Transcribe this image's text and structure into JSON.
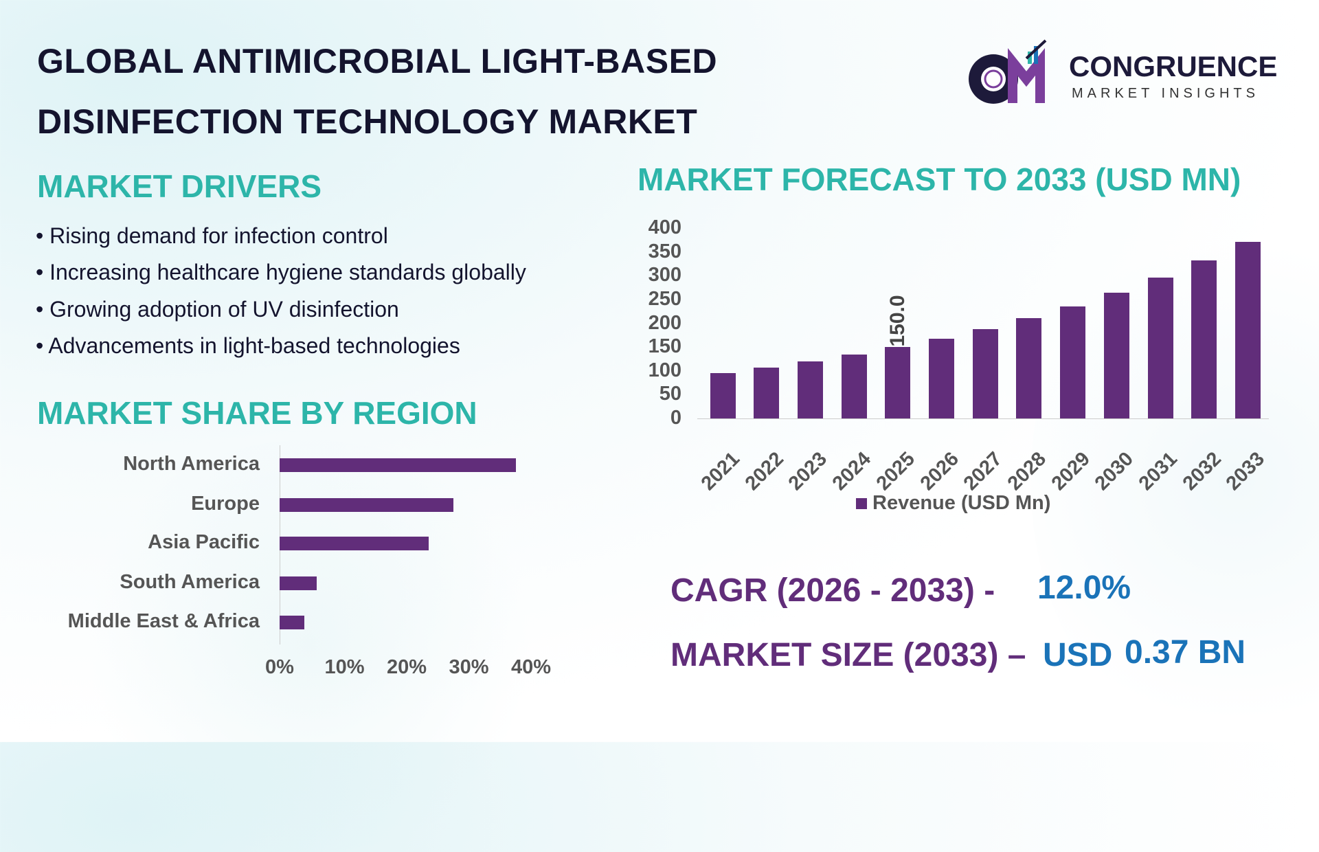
{
  "title_lines": [
    "GLOBAL ANTIMICROBIAL LIGHT-BASED",
    "DISINFECTION TECHNOLOGY MARKET"
  ],
  "logo": {
    "name": "CONGRUENCE",
    "tagline": "MARKET INSIGHTS",
    "letters": "CM"
  },
  "drivers": {
    "heading": "MARKET DRIVERS",
    "items": [
      "• Rising demand for infection control",
      "• Increasing healthcare hygiene standards globally",
      "• Growing adoption of UV disinfection",
      "• Advancements in light-based technologies"
    ]
  },
  "colors": {
    "bar": "#612d7a",
    "heading": "#2db5a9",
    "kpi_label": "#612d7a",
    "kpi_value": "#1a73b8"
  },
  "chart_data": [
    {
      "type": "bar",
      "orientation": "horizontal",
      "title": "MARKET SHARE BY REGION",
      "categories": [
        "North America",
        "Europe",
        "Asia Pacific",
        "South America",
        "Middle East & Africa"
      ],
      "values": [
        38,
        28,
        24,
        6,
        4
      ],
      "xlim": [
        0,
        40
      ],
      "xticks": [
        "0%",
        "10%",
        "20%",
        "30%",
        "40%"
      ],
      "grid": false
    },
    {
      "type": "bar",
      "title": "MARKET FORECAST TO 2033 (USD MN)",
      "categories": [
        "2021",
        "2022",
        "2023",
        "2024",
        "2025",
        "2026",
        "2027",
        "2028",
        "2029",
        "2030",
        "2031",
        "2032",
        "2033"
      ],
      "series": [
        {
          "name": "Revenue (USD Mn)",
          "values": [
            95.6,
            107.1,
            119.9,
            134.3,
            150.0,
            168.0,
            188.2,
            210.8,
            236.1,
            264.4,
            296.1,
            331.6,
            371.4
          ]
        }
      ],
      "data_labels": [
        {
          "category": "2025",
          "text": "150.0"
        }
      ],
      "ylim": [
        0,
        400
      ],
      "yticks": [
        "400",
        "350",
        "300",
        "250",
        "200",
        "150",
        "100",
        "50",
        "0"
      ],
      "legend": "bottom",
      "grid": false
    }
  ],
  "kpis": {
    "cagr_label": "CAGR (2026 - 2033) -",
    "cagr_value": "12.0%",
    "size_label": "MARKET SIZE (2033) –",
    "size_unit": "USD",
    "size_value": "0.37 BN"
  }
}
